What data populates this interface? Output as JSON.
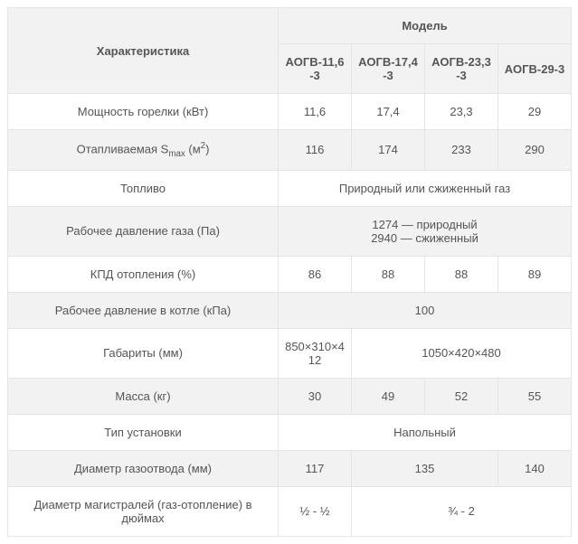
{
  "table": {
    "header": {
      "characteristic": "Характеристика",
      "model": "Модель",
      "models": [
        "АОГВ-11,6-3",
        "АОГВ-17,4-3",
        "АОГВ-23,3-3",
        "АОГВ-29-3"
      ]
    },
    "rows": [
      {
        "label_html": "Мощность горелки (кВт)",
        "cells": [
          {
            "text": "11,6",
            "span": 1
          },
          {
            "text": "17,4",
            "span": 1
          },
          {
            "text": "23,3",
            "span": 1
          },
          {
            "text": "29",
            "span": 1
          }
        ]
      },
      {
        "label_html": "Отапливаемая S<sub>max</sub> (м<sup>2</sup>)",
        "cells": [
          {
            "text": "116",
            "span": 1
          },
          {
            "text": "174",
            "span": 1
          },
          {
            "text": "233",
            "span": 1
          },
          {
            "text": "290",
            "span": 1
          }
        ]
      },
      {
        "label_html": "Топливо",
        "cells": [
          {
            "text": "Природный или сжиженный газ",
            "span": 4
          }
        ]
      },
      {
        "label_html": "Рабочее давление газа (Па)",
        "cells": [
          {
            "html": "1274 — природный<br>2940 — сжиженный",
            "span": 4
          }
        ]
      },
      {
        "label_html": "КПД отопления (%)",
        "cells": [
          {
            "text": "86",
            "span": 1
          },
          {
            "text": "88",
            "span": 1
          },
          {
            "text": "88",
            "span": 1
          },
          {
            "text": "89",
            "span": 1
          }
        ]
      },
      {
        "label_html": "Рабочее давление в котле (кПа)",
        "cells": [
          {
            "text": "100",
            "span": 4
          }
        ]
      },
      {
        "label_html": "Габариты (мм)",
        "cells": [
          {
            "text": "850×310×412",
            "span": 1
          },
          {
            "text": "1050×420×480",
            "span": 3
          }
        ]
      },
      {
        "label_html": "Масса (кг)",
        "cells": [
          {
            "text": "30",
            "span": 1
          },
          {
            "text": "49",
            "span": 1
          },
          {
            "text": "52",
            "span": 1
          },
          {
            "text": "55",
            "span": 1
          }
        ]
      },
      {
        "label_html": "Тип установки",
        "cells": [
          {
            "text": "Напольный",
            "span": 4
          }
        ]
      },
      {
        "label_html": "Диаметр газоотвода (мм)",
        "cells": [
          {
            "text": "117",
            "span": 1
          },
          {
            "text": "135",
            "span": 2
          },
          {
            "text": "140",
            "span": 1
          }
        ]
      },
      {
        "label_html": "Диаметр магистралей (газ-отопление) в дюймах",
        "cells": [
          {
            "text": "½ - ½",
            "span": 1
          },
          {
            "text": "¾ - 2",
            "span": 3
          }
        ]
      }
    ]
  }
}
